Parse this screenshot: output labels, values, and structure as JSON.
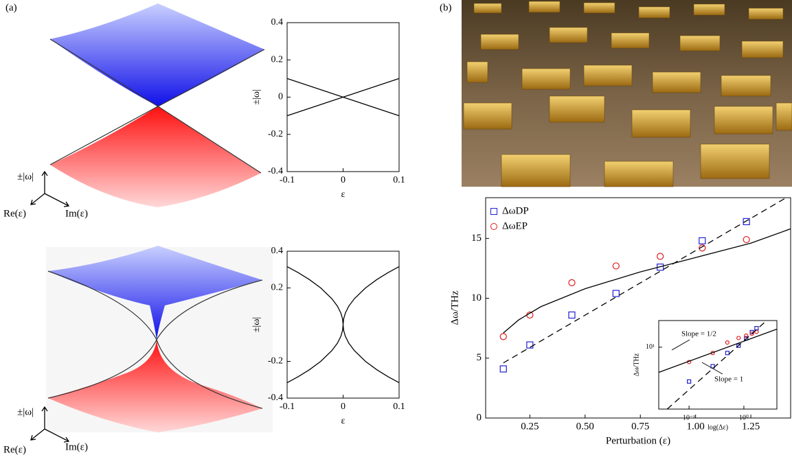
{
  "panel_labels": [
    "(a)",
    "(b)"
  ],
  "axes_3d": [
    {
      "z": "±|ω|",
      "x": "Re(ε)",
      "y": "Im(ε)"
    },
    {
      "z": "±|ω|",
      "x": "Re(ε)",
      "y": "Im(ε)"
    }
  ],
  "chart_data": [
    {
      "type": "line",
      "xlabel": "ε",
      "ylabel": "±|ω|",
      "xlim": [
        -0.1,
        0.1
      ],
      "ylim": [
        -0.4,
        0.4
      ],
      "xticks": [
        -0.1,
        0,
        0.1
      ],
      "yticks": [
        -0.4,
        -0.2,
        0,
        0.2,
        0.4
      ],
      "series": [
        {
          "color": "#000000",
          "style": "solid",
          "x": [
            -0.1,
            0.1
          ],
          "values": [
            0.1,
            -0.1
          ]
        },
        {
          "color": "#000000",
          "style": "solid",
          "x": [
            -0.1,
            0.1
          ],
          "values": [
            -0.1,
            0.1
          ]
        }
      ]
    },
    {
      "type": "line",
      "xlabel": "ε",
      "ylabel": "±|ω|",
      "xlim": [
        -0.1,
        0.1
      ],
      "ylim": [
        -0.4,
        0.4
      ],
      "xticks": [
        -0.1,
        0,
        0.1
      ],
      "yticks": [
        -0.4,
        -0.2,
        0.2,
        0.4
      ],
      "series": [
        {
          "color": "#000000",
          "style": "solid",
          "x": [
            -0.1,
            -0.08,
            -0.06,
            -0.04,
            -0.02,
            -0.01,
            -0.004,
            -0.001,
            0,
            0.001,
            0.004,
            0.01,
            0.02,
            0.04,
            0.06,
            0.08,
            0.1
          ],
          "values": [
            0.316,
            0.283,
            0.245,
            0.2,
            0.141,
            0.1,
            0.063,
            0.032,
            0,
            0.032,
            0.063,
            0.1,
            0.141,
            0.2,
            0.245,
            0.283,
            0.316
          ]
        },
        {
          "color": "#000000",
          "style": "solid",
          "x": [
            -0.1,
            -0.08,
            -0.06,
            -0.04,
            -0.02,
            -0.01,
            -0.004,
            -0.001,
            0,
            0.001,
            0.004,
            0.01,
            0.02,
            0.04,
            0.06,
            0.08,
            0.1
          ],
          "values": [
            -0.316,
            -0.283,
            -0.245,
            -0.2,
            -0.141,
            -0.1,
            -0.063,
            -0.032,
            0,
            -0.032,
            -0.063,
            -0.1,
            -0.141,
            -0.2,
            -0.245,
            -0.283,
            -0.316
          ]
        }
      ]
    },
    {
      "type": "scatter",
      "xlabel": "Perturbation (ε)",
      "ylabel": "Δω/THz",
      "xlim": [
        0.05,
        1.43
      ],
      "ylim": [
        0,
        18.4
      ],
      "xticks": [
        0.25,
        {
          "value": 0.5,
          "label": "0.50"
        },
        0.75,
        {
          "value": 1,
          "label": "1.00"
        },
        1.25
      ],
      "yticks": [
        0,
        5,
        10,
        15
      ],
      "legend": "upper left",
      "series": [
        {
          "name": "ΔωDP",
          "color": "#1f1fd0",
          "style": "square",
          "x": [
            0.13,
            0.25,
            0.44,
            0.64,
            0.84,
            1.03,
            1.23
          ],
          "values": [
            4.1,
            6.1,
            8.6,
            10.4,
            12.6,
            14.8,
            16.4
          ]
        },
        {
          "name": "ΔωEP",
          "color": "#e01a1a",
          "style": "circle",
          "x": [
            0.13,
            0.25,
            0.44,
            0.64,
            0.84,
            1.03,
            1.23
          ],
          "values": [
            6.8,
            8.6,
            11.3,
            12.7,
            13.5,
            14.2,
            14.9
          ]
        },
        {
          "color": "#000000",
          "style": "solid",
          "x": [
            0.13,
            0.2,
            0.3,
            0.5,
            0.75,
            1.0,
            1.25,
            1.43
          ],
          "values": [
            7.1,
            8.2,
            9.3,
            10.8,
            12.2,
            13.4,
            14.6,
            15.8
          ]
        },
        {
          "color": "#000000",
          "style": "dashed",
          "x": [
            0.13,
            1.41
          ],
          "values": [
            4.6,
            18.4
          ]
        }
      ]
    },
    {
      "type": "scatter",
      "xlabel": "log(Δε)",
      "ylabel": "Δω/THz",
      "log_scale": true,
      "xlim": [
        0.028,
        4
      ],
      "ylim": [
        2,
        20
      ],
      "xticks": [
        {
          "value": 0.1,
          "label": "10⁻¹"
        },
        {
          "value": 1,
          "label": "10⁰"
        }
      ],
      "yticks": [
        {
          "value": 10,
          "label": "10¹"
        }
      ],
      "annotations": [
        "Slope = 1/2",
        "Slope = 1"
      ],
      "series": [
        {
          "color": "#1f1fd0",
          "style": "square",
          "x": [
            0.1,
            0.27,
            0.5,
            0.8,
            1.1,
            1.4,
            1.7
          ],
          "values": [
            4.1,
            6.1,
            8.6,
            10.4,
            12.6,
            14.8,
            16.4
          ]
        },
        {
          "color": "#e01a1a",
          "style": "circle",
          "x": [
            0.1,
            0.27,
            0.5,
            0.8,
            1.1,
            1.4,
            1.7
          ],
          "values": [
            6.8,
            8.6,
            11.3,
            12.7,
            13.5,
            14.2,
            14.9
          ]
        },
        {
          "color": "#000000",
          "style": "solid",
          "x": [
            0.028,
            4
          ],
          "values": [
            5.2,
            16
          ]
        },
        {
          "color": "#000000",
          "style": "dashed",
          "x": [
            0.04,
            2.6
          ],
          "values": [
            2,
            20
          ]
        }
      ]
    }
  ]
}
